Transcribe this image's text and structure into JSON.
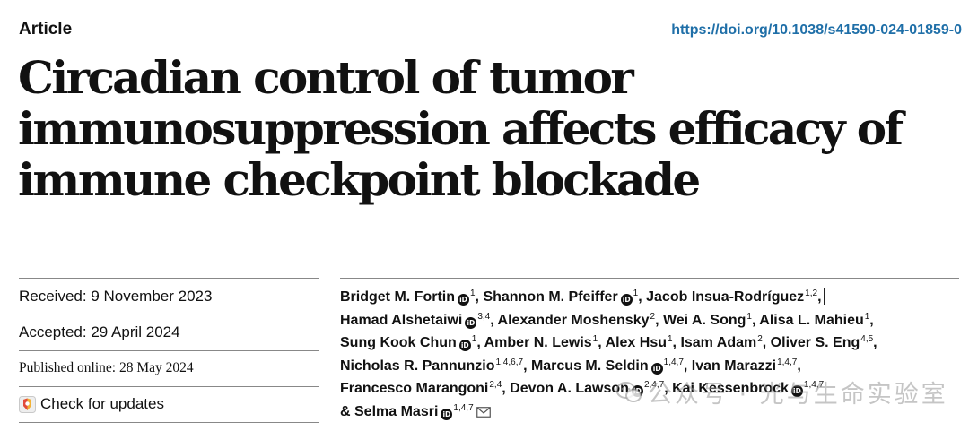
{
  "header": {
    "article_type": "Article",
    "doi": "https://doi.org/10.1038/s41590-024-01859-0"
  },
  "title_lines": [
    "Circadian control of tumor",
    "immunosuppression affects efficacy of",
    "immune checkpoint blockade"
  ],
  "dates": {
    "received": "Received: 9 November 2023",
    "accepted": "Accepted: 29 April 2024",
    "published": "Published online: 28 May 2024"
  },
  "check_updates": {
    "label": "Check for updates",
    "icon": "check-for-updates-icon"
  },
  "orcid_glyph": "iD",
  "author_lines": [
    [
      {
        "name": "Bridget M. Fortin",
        "orcid": true,
        "sup": "1",
        "sep": ", "
      },
      {
        "name": "Shannon M. Pfeiffer",
        "orcid": true,
        "sup": "1",
        "sep": ", "
      },
      {
        "name": "Jacob Insua-Rodríguez",
        "orcid": false,
        "sup": "1,2",
        "sep": ","
      }
    ],
    [
      {
        "name": "Hamad Alshetaiwi",
        "orcid": true,
        "sup": "3,4",
        "sep": ", "
      },
      {
        "name": "Alexander Moshensky",
        "orcid": false,
        "sup": "2",
        "sep": ", "
      },
      {
        "name": "Wei A. Song",
        "orcid": false,
        "sup": "1",
        "sep": ", "
      },
      {
        "name": "Alisa L. Mahieu",
        "orcid": false,
        "sup": "1",
        "sep": ","
      }
    ],
    [
      {
        "name": "Sung Kook Chun",
        "orcid": true,
        "sup": "1",
        "sep": ", "
      },
      {
        "name": "Amber N. Lewis",
        "orcid": false,
        "sup": "1",
        "sep": ", "
      },
      {
        "name": "Alex Hsu",
        "orcid": false,
        "sup": "1",
        "sep": ", "
      },
      {
        "name": "Isam Adam",
        "orcid": false,
        "sup": "2",
        "sep": ", "
      },
      {
        "name": "Oliver S. Eng",
        "orcid": false,
        "sup": "4,5",
        "sep": ","
      }
    ],
    [
      {
        "name": "Nicholas R. Pannunzio",
        "orcid": false,
        "sup": "1,4,6,7",
        "sep": ", "
      },
      {
        "name": "Marcus M. Seldin",
        "orcid": true,
        "sup": "1,4,7",
        "sep": ", "
      },
      {
        "name": "Ivan Marazzi",
        "orcid": false,
        "sup": "1,4,7",
        "sep": ","
      }
    ],
    [
      {
        "name": "Francesco Marangoni",
        "orcid": false,
        "sup": "2,4",
        "sep": ", "
      },
      {
        "name": "Devon A. Lawson",
        "orcid": true,
        "sup": "2,4,7",
        "sep": ", "
      },
      {
        "name": "Kai Kessenbrock",
        "orcid": true,
        "sup": "1,4,7",
        "sep": ""
      }
    ],
    [
      {
        "name": "& Selma Masri",
        "orcid": true,
        "sup": "1,4,7",
        "sep": "",
        "mail": true
      }
    ]
  ],
  "watermark": {
    "text": "公众号 · 光与生命实验室",
    "icon": "wechat-icon"
  },
  "colors": {
    "doi_link": "#1f6fa8",
    "text": "#111111",
    "rule": "#888888"
  }
}
